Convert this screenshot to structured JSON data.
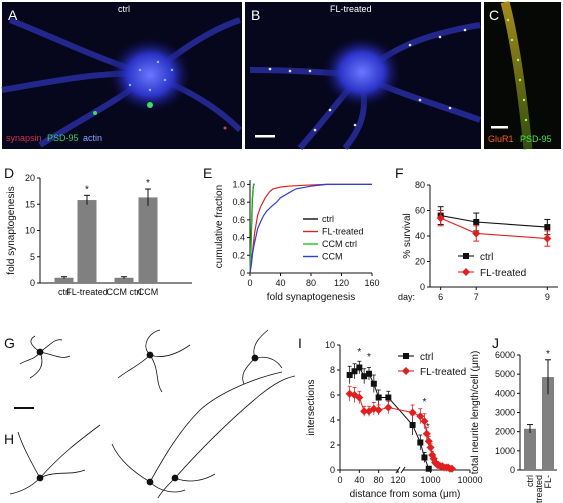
{
  "panels": {
    "A": {
      "label": "A",
      "caption": "ctrl",
      "legend": [
        "synapsin",
        "PSD-95",
        "actin"
      ],
      "legend_colors": [
        "#d0304a",
        "#3fcf5a",
        "#8ea0ff"
      ]
    },
    "B": {
      "label": "B",
      "caption": "FL-treated"
    },
    "C": {
      "label": "C",
      "legend": [
        "GluR1",
        "PSD-95"
      ],
      "legend_colors": [
        "#ff5a20",
        "#50e050"
      ]
    },
    "G": {
      "label": "G"
    },
    "H": {
      "label": "H"
    }
  },
  "colors": {
    "ctrl": "#111111",
    "fl": "#e02020",
    "ccm_ctrl": "#22c322",
    "ccm": "#2a3fd6",
    "bar": "#808080"
  },
  "chart_data": [
    {
      "panel": "D",
      "type": "bar",
      "categories": [
        "ctrl",
        "FL-treated",
        "CCM ctrl",
        "CCM"
      ],
      "values": [
        1,
        15.8,
        1,
        16.3
      ],
      "errors": [
        0.2,
        0.9,
        0.2,
        1.6
      ],
      "significant": [
        false,
        true,
        false,
        true
      ],
      "ylabel": "fold synaptogenesis",
      "ylim": [
        0,
        20
      ],
      "yticks": [
        0,
        5,
        10,
        15,
        20
      ]
    },
    {
      "panel": "E",
      "type": "line",
      "xlabel": "fold synaptogenesis",
      "ylabel": "cumulative fraction",
      "xlim": [
        0,
        160
      ],
      "ylim": [
        0,
        1.05
      ],
      "xticks": [
        0,
        40,
        80,
        120,
        160
      ],
      "yticks": [
        0,
        0.2,
        0.4,
        0.6,
        0.8,
        1.0
      ],
      "yticklabels": [
        "0",
        "0.2",
        "0.4",
        "0.6",
        "0.8",
        "1.0"
      ],
      "legend": "right",
      "series": [
        {
          "name": "ctrl",
          "color": "#111111",
          "x": [
            0,
            1,
            2,
            3,
            4,
            5,
            6
          ],
          "y": [
            0,
            0.2,
            0.5,
            0.8,
            0.95,
            1,
            1
          ]
        },
        {
          "name": "FL-treated",
          "color": "#e02020",
          "x": [
            0,
            2,
            4,
            6,
            8,
            10,
            14,
            20,
            26,
            30,
            40,
            50,
            70,
            100,
            160
          ],
          "y": [
            0,
            0.1,
            0.3,
            0.45,
            0.55,
            0.65,
            0.75,
            0.85,
            0.92,
            0.95,
            0.97,
            0.98,
            0.99,
            1,
            1
          ]
        },
        {
          "name": "CCM ctrl",
          "color": "#22c322",
          "x": [
            0,
            1,
            2,
            3,
            4,
            5,
            6
          ],
          "y": [
            0,
            0.3,
            0.6,
            0.85,
            0.97,
            1,
            1
          ]
        },
        {
          "name": "CCM",
          "color": "#2a3fd6",
          "x": [
            0,
            3,
            5,
            8,
            10,
            14,
            18,
            22,
            28,
            35,
            40,
            50,
            60,
            80,
            100,
            160
          ],
          "y": [
            0,
            0.2,
            0.3,
            0.42,
            0.5,
            0.58,
            0.65,
            0.7,
            0.75,
            0.8,
            0.85,
            0.9,
            0.95,
            0.98,
            1,
            1
          ]
        }
      ]
    },
    {
      "panel": "F",
      "type": "line",
      "ylabel": "% survival",
      "xlabel_prefix": "day:",
      "categories": [
        "6",
        "7",
        "9"
      ],
      "x": [
        6,
        7,
        9
      ],
      "xlim": [
        5.7,
        9.3
      ],
      "ylim": [
        0,
        80
      ],
      "yticks": [
        0,
        20,
        40,
        60,
        80
      ],
      "legend": "bottom-right",
      "series": [
        {
          "name": "ctrl",
          "color": "#111111",
          "marker": "square",
          "y": [
            56,
            51,
            47
          ],
          "err": [
            7,
            7,
            6
          ]
        },
        {
          "name": "FL-treated",
          "color": "#e02020",
          "marker": "diamond",
          "y": [
            54,
            42,
            38
          ],
          "err": [
            6,
            6,
            6
          ]
        }
      ]
    },
    {
      "panel": "I",
      "type": "line",
      "xlabel": "distance from soma (μm)",
      "ylabel": "intersections",
      "xticks": [
        "0",
        "40",
        "80",
        "120",
        "1000",
        "10000"
      ],
      "ylim": [
        0,
        10
      ],
      "yticks": [
        0,
        2,
        4,
        6,
        8,
        10
      ],
      "significance_marks": [
        40,
        60,
        700,
        850
      ],
      "legend": "top-right",
      "series": [
        {
          "name": "ctrl",
          "color": "#111111",
          "marker": "square",
          "x": [
            20,
            30,
            40,
            50,
            60,
            70,
            80,
            100,
            350,
            550,
            700,
            900
          ],
          "y": [
            7.6,
            7.9,
            8.2,
            7.5,
            7.7,
            6.9,
            5.8,
            5.8,
            3.6,
            2.2,
            1,
            0.1
          ],
          "err": [
            0.7,
            0.6,
            0.5,
            0.6,
            0.5,
            0.7,
            0.6,
            0.5,
            0.8,
            0.6,
            0.4,
            0.1
          ]
        },
        {
          "name": "FL-treated",
          "color": "#e02020",
          "marker": "diamond",
          "x": [
            20,
            30,
            40,
            50,
            60,
            70,
            80,
            100,
            350,
            550,
            700,
            800,
            900,
            1000,
            1100,
            1200,
            1300,
            1400,
            1500,
            1600,
            1800,
            2000,
            2200,
            2500,
            2800,
            3100,
            3500
          ],
          "y": [
            6.1,
            6,
            5.8,
            4.7,
            4.7,
            4.9,
            4.8,
            5,
            4.6,
            4.3,
            3.9,
            2.9,
            2.3,
            1.8,
            1.2,
            0.9,
            0.6,
            0.5,
            0.4,
            0.4,
            0.3,
            0.3,
            0.2,
            0.2,
            0.2,
            0.1,
            0.1
          ],
          "err": [
            0.6,
            0.6,
            0.5,
            0.4,
            0.4,
            0.5,
            0.4,
            0.5,
            0.6,
            0.6,
            0.6,
            0.5,
            0.4,
            0.3,
            0.3,
            0.2,
            0.2,
            0.2,
            0.1,
            0.1,
            0.1,
            0.1,
            0.1,
            0.1,
            0.1,
            0.1,
            0.1
          ]
        }
      ]
    },
    {
      "panel": "J",
      "type": "bar",
      "categories": [
        "ctrl",
        "FL-\ntreated"
      ],
      "values": [
        2150,
        4850
      ],
      "errors": [
        220,
        900
      ],
      "significant": [
        false,
        true
      ],
      "ylabel": "total neurite length/cell (μm)",
      "ylim": [
        0,
        6000
      ],
      "yticks": [
        0,
        1000,
        2000,
        3000,
        4000,
        5000,
        6000
      ]
    }
  ]
}
